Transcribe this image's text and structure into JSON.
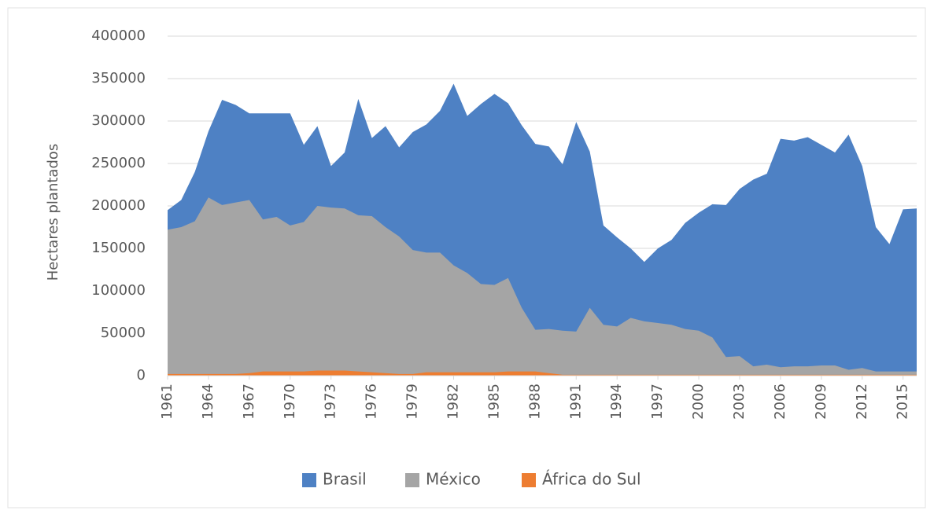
{
  "chart_data": {
    "type": "area",
    "y_label": "Hectares plantados",
    "x": [
      1961,
      1962,
      1963,
      1964,
      1965,
      1966,
      1967,
      1968,
      1969,
      1970,
      1971,
      1972,
      1973,
      1974,
      1975,
      1976,
      1977,
      1978,
      1979,
      1980,
      1981,
      1982,
      1983,
      1984,
      1985,
      1986,
      1987,
      1988,
      1989,
      1990,
      1991,
      1992,
      1993,
      1994,
      1995,
      1996,
      1997,
      1998,
      1999,
      2000,
      2001,
      2002,
      2003,
      2004,
      2005,
      2006,
      2007,
      2008,
      2009,
      2010,
      2011,
      2012,
      2013,
      2014,
      2015,
      2016
    ],
    "xlim": [
      1961,
      2016
    ],
    "xticks": [
      1961,
      1964,
      1967,
      1970,
      1973,
      1976,
      1979,
      1982,
      1985,
      1988,
      1991,
      1994,
      1997,
      2000,
      2003,
      2006,
      2009,
      2012,
      2015
    ],
    "ylim": [
      0,
      400000
    ],
    "yticks": [
      0,
      50000,
      100000,
      150000,
      200000,
      250000,
      300000,
      350000,
      400000
    ],
    "grid": true,
    "legend": "bottom",
    "series": [
      {
        "name": "Brasil",
        "color": "#4e81c4",
        "values": [
          195000,
          207000,
          240000,
          288000,
          325000,
          319000,
          309000,
          309000,
          309000,
          309000,
          272000,
          294000,
          247000,
          263000,
          326000,
          280000,
          294000,
          269000,
          287000,
          296000,
          312000,
          344000,
          306000,
          320000,
          332000,
          321000,
          295000,
          273000,
          270000,
          249000,
          299000,
          264000,
          177000,
          163000,
          150000,
          134000,
          150000,
          160000,
          180000,
          192000,
          202000,
          201000,
          220000,
          231000,
          238000,
          279000,
          277000,
          281000,
          272000,
          263000,
          284000,
          247000,
          175000,
          155000,
          196000,
          197000
        ]
      },
      {
        "name": "México",
        "color": "#a5a5a5",
        "values": [
          172000,
          175000,
          182000,
          210000,
          201000,
          204000,
          207000,
          184000,
          187000,
          177000,
          181000,
          200000,
          198000,
          197000,
          189000,
          188000,
          175000,
          164000,
          148000,
          145000,
          145000,
          130000,
          121000,
          108000,
          107000,
          115000,
          80000,
          54000,
          55000,
          53000,
          52000,
          80000,
          60000,
          58000,
          68000,
          64000,
          62000,
          60000,
          55000,
          53000,
          45000,
          22000,
          23000,
          11000,
          13000,
          10000,
          11000,
          11000,
          12000,
          12000,
          7000,
          9000,
          5000,
          5000,
          5000,
          5000
        ]
      },
      {
        "name": "África do Sul",
        "color": "#ed7d31",
        "values": [
          2000,
          2000,
          2000,
          2000,
          2000,
          2000,
          3000,
          5000,
          5000,
          5000,
          5000,
          6000,
          6000,
          6000,
          5000,
          4000,
          3000,
          2000,
          2000,
          4000,
          4000,
          4000,
          4000,
          4000,
          4000,
          5000,
          5000,
          5000,
          3000,
          1000,
          1000,
          1000,
          1000,
          1000,
          1000,
          1000,
          1000,
          1000,
          1000,
          1000,
          1000,
          1000,
          1000,
          1000,
          1000,
          1000,
          1000,
          1000,
          1000,
          1000,
          1000,
          1000,
          1000,
          1000,
          1000,
          1000
        ]
      }
    ]
  }
}
